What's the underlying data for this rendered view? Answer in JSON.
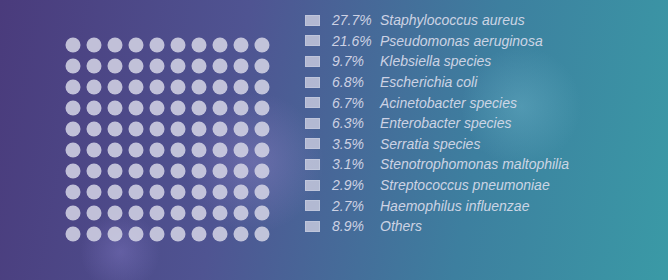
{
  "chart_data": {
    "type": "waffle",
    "categories": [
      "Staphylococcus aureus",
      "Pseudomonas aeruginosa",
      "Klebsiella species",
      "Escherichia coli",
      "Acinetobacter species",
      "Enterobacter species",
      "Serratia species",
      "Stenotrophomonas maltophilia",
      "Streptococcus pneumoniae",
      "Haemophilus influenzae",
      "Others"
    ],
    "values": [
      27.7,
      21.6,
      9.7,
      6.8,
      6.7,
      6.3,
      3.5,
      3.1,
      2.9,
      2.7,
      8.9
    ],
    "value_labels": [
      "27.7%",
      "21.6%",
      "9.7%",
      "6.8%",
      "6.7%",
      "6.3%",
      "3.5%",
      "3.1%",
      "2.9%",
      "2.7%",
      "8.9%"
    ],
    "color": "#d6d6e6",
    "data_labels": true,
    "tick_labels": false
  }
}
